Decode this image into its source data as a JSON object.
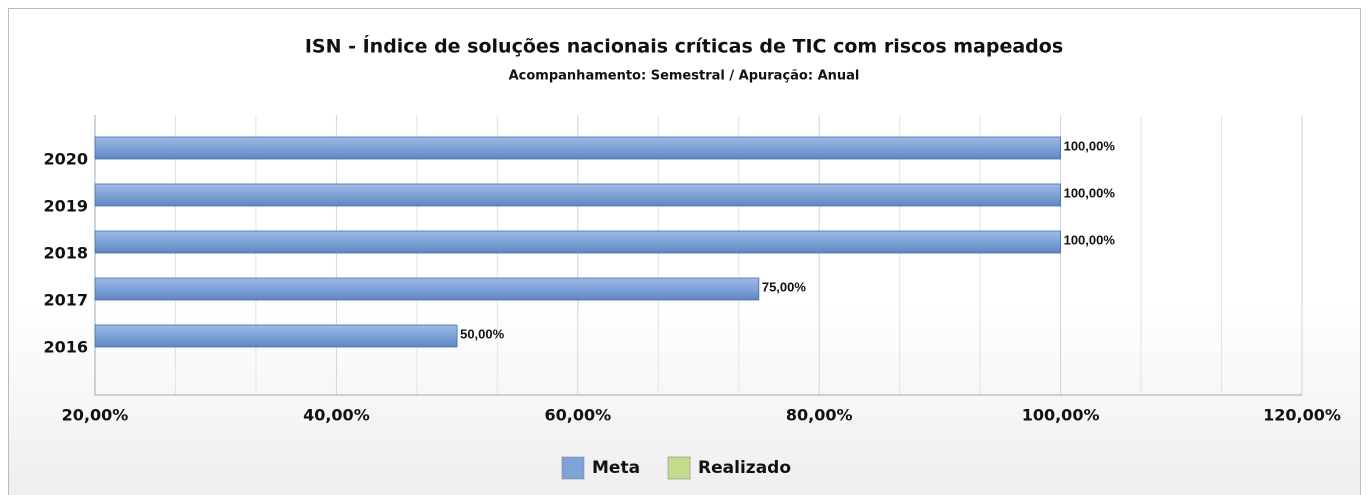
{
  "chart_data": {
    "type": "hbar",
    "title": "ISN - Índice de soluções nacionais críticas de TIC com riscos mapeados",
    "subtitle": "Acompanhamento: Semestral /  Apuração: Anual",
    "categories": [
      "2020",
      "2019",
      "2018",
      "2017",
      "2016"
    ],
    "series": [
      {
        "name": "Meta",
        "color": "#7ea3d8",
        "values": [
          100,
          100,
          100,
          75,
          50
        ],
        "value_labels": [
          "100,00%",
          "100,00%",
          "100,00%",
          "75,00%",
          "50,00%"
        ]
      },
      {
        "name": "Realizado",
        "color": "#c5dc8e",
        "values": [
          null,
          null,
          null,
          null,
          null
        ]
      }
    ],
    "xlim": [
      20,
      120
    ],
    "xticks": [
      {
        "value": 20,
        "label": "20,00%"
      },
      {
        "value": 40,
        "label": "40,00%"
      },
      {
        "value": 60,
        "label": "60,00%"
      },
      {
        "value": 80,
        "label": "80,00%"
      },
      {
        "value": 100,
        "label": "100,00%"
      },
      {
        "value": 120,
        "label": "120,00%"
      }
    ],
    "grid": true,
    "legend": "bottom"
  }
}
